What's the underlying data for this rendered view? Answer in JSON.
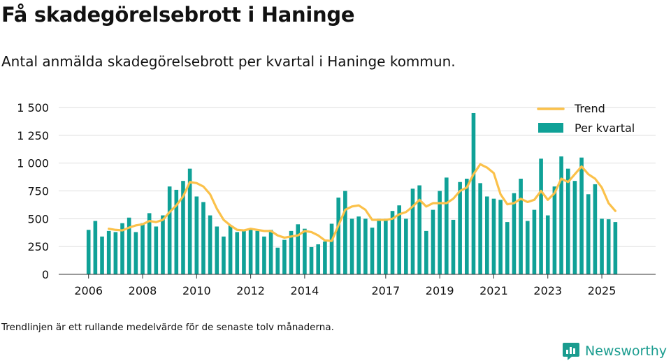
{
  "title": "Få skadegörelsebrott i Haninge",
  "subtitle": "Antal anmälda skadegörelsebrott per kvartal i Haninge kommun.",
  "footnote": "Trendlinjen är ett rullande medelvärde för de senaste tolv månaderna.",
  "brand": {
    "name": "Newsworthy",
    "icon": "newsworthy-logo-icon"
  },
  "colors": {
    "bar": "#0fa197",
    "trend": "#fbc14a",
    "grid": "#dddddd",
    "text": "#111111",
    "brand": "#1a9c8f"
  },
  "chart_data": {
    "type": "bar",
    "title": "Få skadegörelsebrott i Haninge",
    "xlabel": "",
    "ylabel": "",
    "ylim": [
      0,
      1500
    ],
    "yticks": [
      0,
      250,
      500,
      750,
      1000,
      1250,
      1500
    ],
    "ytick_labels": [
      "0",
      "250",
      "500",
      "750",
      "1 000",
      "1 250",
      "1 500"
    ],
    "xticks": [
      2006,
      2008,
      2010,
      2012,
      2014,
      2017,
      2019,
      2021,
      2023,
      2025
    ],
    "xtick_labels": [
      "2006",
      "2008",
      "2010",
      "2012",
      "2014",
      "2017",
      "2019",
      "2021",
      "2023",
      "2025"
    ],
    "legend": {
      "placement": "top-right",
      "trend_label": "Trend",
      "bar_label": "Per kvartal"
    },
    "x_start_year": 2006,
    "series": [
      {
        "name": "Per kvartal",
        "kind": "bar",
        "values": [
          400,
          480,
          340,
          390,
          380,
          460,
          510,
          380,
          460,
          550,
          430,
          530,
          790,
          760,
          840,
          950,
          700,
          650,
          530,
          430,
          340,
          440,
          380,
          400,
          410,
          390,
          340,
          400,
          240,
          310,
          390,
          450,
          410,
          245,
          270,
          295,
          455,
          690,
          750,
          500,
          520,
          500,
          420,
          500,
          500,
          570,
          620,
          500,
          770,
          800,
          390,
          580,
          750,
          870,
          490,
          830,
          860,
          1450,
          820,
          700,
          680,
          670,
          470,
          730,
          860,
          480,
          580,
          1040,
          530,
          790,
          1060,
          950,
          840,
          1050,
          720,
          810,
          500,
          495,
          470
        ]
      },
      {
        "name": "Trend",
        "kind": "line",
        "values": [
          null,
          null,
          null,
          410,
          400,
          395,
          420,
          440,
          450,
          480,
          470,
          490,
          560,
          620,
          700,
          830,
          820,
          790,
          720,
          590,
          490,
          440,
          400,
          395,
          410,
          400,
          390,
          390,
          350,
          330,
          340,
          350,
          390,
          380,
          350,
          305,
          300,
          440,
          580,
          610,
          620,
          580,
          490,
          490,
          490,
          500,
          540,
          560,
          610,
          670,
          610,
          640,
          640,
          640,
          680,
          750,
          780,
          900,
          990,
          960,
          910,
          720,
          630,
          640,
          680,
          650,
          670,
          750,
          670,
          730,
          860,
          830,
          900,
          970,
          900,
          860,
          780,
          640,
          570
        ]
      }
    ]
  }
}
